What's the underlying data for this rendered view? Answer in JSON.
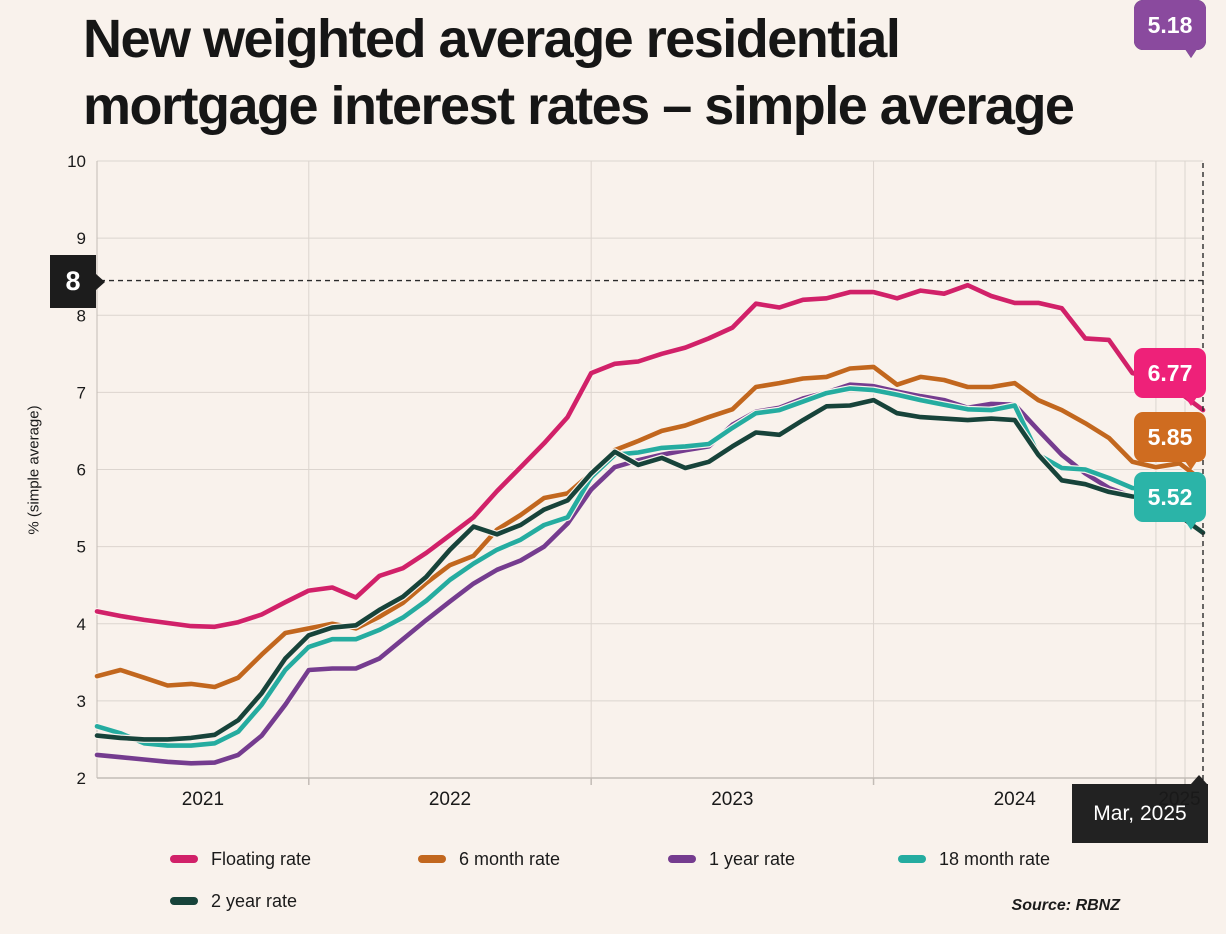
{
  "title": {
    "line1": "New weighted average residential",
    "line2": "mortgage interest rates – simple average"
  },
  "source": "Source: RBNZ",
  "colors": {
    "background": "#f9f2ec",
    "gridline": "#dcd5cf",
    "axis": "#c3bcb6",
    "crosshair": "#2b2b2b",
    "tooltip_background": "#1c1c1c"
  },
  "chart_data": {
    "type": "line",
    "title": "New weighted average residential mortgage interest rates – simple average",
    "ylabel": "% (simple average)",
    "ylim": [
      2,
      10
    ],
    "y_ticks": [
      10,
      9,
      8,
      7,
      6,
      5,
      4,
      3,
      2
    ],
    "x_tick_labels": [
      "2021",
      "2022",
      "2023",
      "2024",
      "2025"
    ],
    "x_start": "2021-04",
    "x_end": "2025-03",
    "x_unit": "month",
    "grid": true,
    "legend_position": "bottom",
    "crosshair": {
      "x_label": "Mar, 2025",
      "y_label": "8",
      "y_value": 8.45
    },
    "series": [
      {
        "name": "Floating rate",
        "color": "#d12169",
        "end_label": "6.77",
        "values": [
          4.16,
          4.1,
          4.05,
          4.01,
          3.97,
          3.96,
          4.02,
          4.12,
          4.28,
          4.43,
          4.47,
          4.34,
          4.62,
          4.72,
          4.92,
          5.15,
          5.38,
          5.72,
          6.03,
          6.34,
          6.68,
          7.25,
          7.37,
          7.4,
          7.5,
          7.58,
          7.7,
          7.84,
          8.15,
          8.1,
          8.2,
          8.22,
          8.3,
          8.3,
          8.22,
          8.32,
          8.28,
          8.39,
          8.25,
          8.16,
          8.16,
          8.09,
          7.7,
          7.68,
          7.25,
          7.19,
          7.0,
          6.77
        ]
      },
      {
        "name": "6 month rate",
        "color": "#c2671e",
        "end_label": "5.85",
        "values": [
          3.32,
          3.4,
          3.3,
          3.2,
          3.22,
          3.18,
          3.3,
          3.6,
          3.88,
          3.94,
          4.0,
          3.94,
          4.09,
          4.27,
          4.53,
          4.76,
          4.88,
          5.22,
          5.41,
          5.63,
          5.69,
          5.95,
          6.25,
          6.37,
          6.5,
          6.57,
          6.68,
          6.78,
          7.07,
          7.12,
          7.18,
          7.2,
          7.31,
          7.33,
          7.1,
          7.2,
          7.16,
          7.07,
          7.07,
          7.12,
          6.9,
          6.77,
          6.6,
          6.41,
          6.1,
          6.03,
          6.08,
          5.85
        ]
      },
      {
        "name": "1 year rate",
        "color": "#753c8f",
        "end_label": "5.18",
        "values": [
          2.3,
          2.27,
          2.24,
          2.21,
          2.19,
          2.2,
          2.3,
          2.55,
          2.95,
          3.4,
          3.42,
          3.42,
          3.55,
          3.8,
          4.05,
          4.29,
          4.52,
          4.7,
          4.82,
          5.0,
          5.3,
          5.74,
          6.03,
          6.12,
          6.19,
          6.25,
          6.3,
          6.58,
          6.75,
          6.8,
          6.92,
          7.0,
          7.1,
          7.08,
          7.01,
          6.95,
          6.9,
          6.8,
          6.85,
          6.84,
          6.51,
          6.19,
          5.95,
          5.76,
          5.65,
          5.6,
          5.38,
          5.18
        ]
      },
      {
        "name": "18 month rate",
        "color": "#25aca0",
        "end_label": "5.52",
        "values": [
          2.67,
          2.58,
          2.45,
          2.42,
          2.42,
          2.45,
          2.6,
          2.95,
          3.4,
          3.7,
          3.8,
          3.8,
          3.92,
          4.08,
          4.3,
          4.57,
          4.78,
          4.96,
          5.09,
          5.28,
          5.38,
          5.9,
          6.19,
          6.22,
          6.28,
          6.3,
          6.33,
          6.54,
          6.73,
          6.77,
          6.88,
          6.99,
          7.05,
          7.03,
          6.97,
          6.9,
          6.84,
          6.78,
          6.77,
          6.83,
          6.19,
          6.02,
          6.0,
          5.89,
          5.76,
          5.74,
          5.62,
          5.52
        ]
      },
      {
        "name": "2 year rate",
        "color": "#17433a",
        "end_label": "5.18",
        "values": [
          2.55,
          2.52,
          2.5,
          2.5,
          2.52,
          2.56,
          2.75,
          3.1,
          3.55,
          3.85,
          3.95,
          3.98,
          4.18,
          4.35,
          4.61,
          4.96,
          5.26,
          5.16,
          5.28,
          5.48,
          5.6,
          5.95,
          6.23,
          6.06,
          6.15,
          6.02,
          6.1,
          6.3,
          6.48,
          6.45,
          6.64,
          6.82,
          6.83,
          6.9,
          6.73,
          6.68,
          6.66,
          6.64,
          6.66,
          6.64,
          6.19,
          5.86,
          5.81,
          5.71,
          5.65,
          5.63,
          5.4,
          5.18
        ]
      }
    ]
  },
  "badges": [
    {
      "value": "6.77",
      "color": "#ee2179"
    },
    {
      "value": "5.85",
      "color": "#cf6c20"
    },
    {
      "value": "5.52",
      "color": "#2bb4a8"
    },
    {
      "value": "5.18",
      "color": "#1d4a41"
    },
    {
      "value": "5.18",
      "color": "#8a4a9e"
    }
  ]
}
